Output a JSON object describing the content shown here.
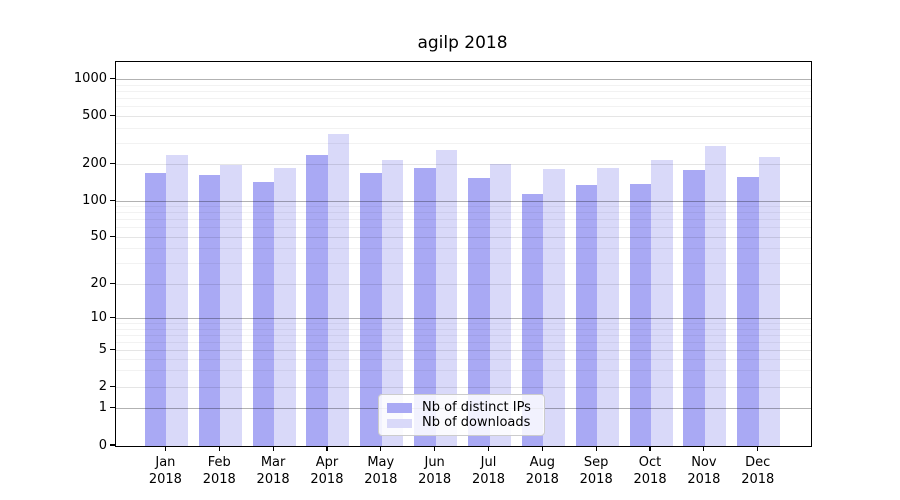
{
  "chart_data": {
    "type": "bar",
    "title": "agilp 2018",
    "categories": [
      "Jan 2018",
      "Feb 2018",
      "Mar 2018",
      "Apr 2018",
      "May 2018",
      "Jun 2018",
      "Jul 2018",
      "Aug 2018",
      "Sep 2018",
      "Oct 2018",
      "Nov 2018",
      "Dec 2018"
    ],
    "series": [
      {
        "name": "Nb of distinct IPs",
        "color": "#a9a9f4",
        "values": [
          170,
          165,
          145,
          240,
          170,
          190,
          155,
          115,
          135,
          140,
          180,
          160
        ]
      },
      {
        "name": "Nb of downloads",
        "color": "#d9d9f9",
        "values": [
          240,
          200,
          190,
          360,
          220,
          265,
          205,
          185,
          190,
          220,
          285,
          230
        ]
      }
    ],
    "xlabel": "",
    "ylabel": "",
    "yscale": "log",
    "ylim": [
      0,
      1000
    ],
    "ytick_labels": [
      "0",
      "1",
      "2",
      "5",
      "10",
      "20",
      "50",
      "100",
      "200",
      "500",
      "1000"
    ],
    "grid": true,
    "legend_position": "inside-bottom-center"
  }
}
